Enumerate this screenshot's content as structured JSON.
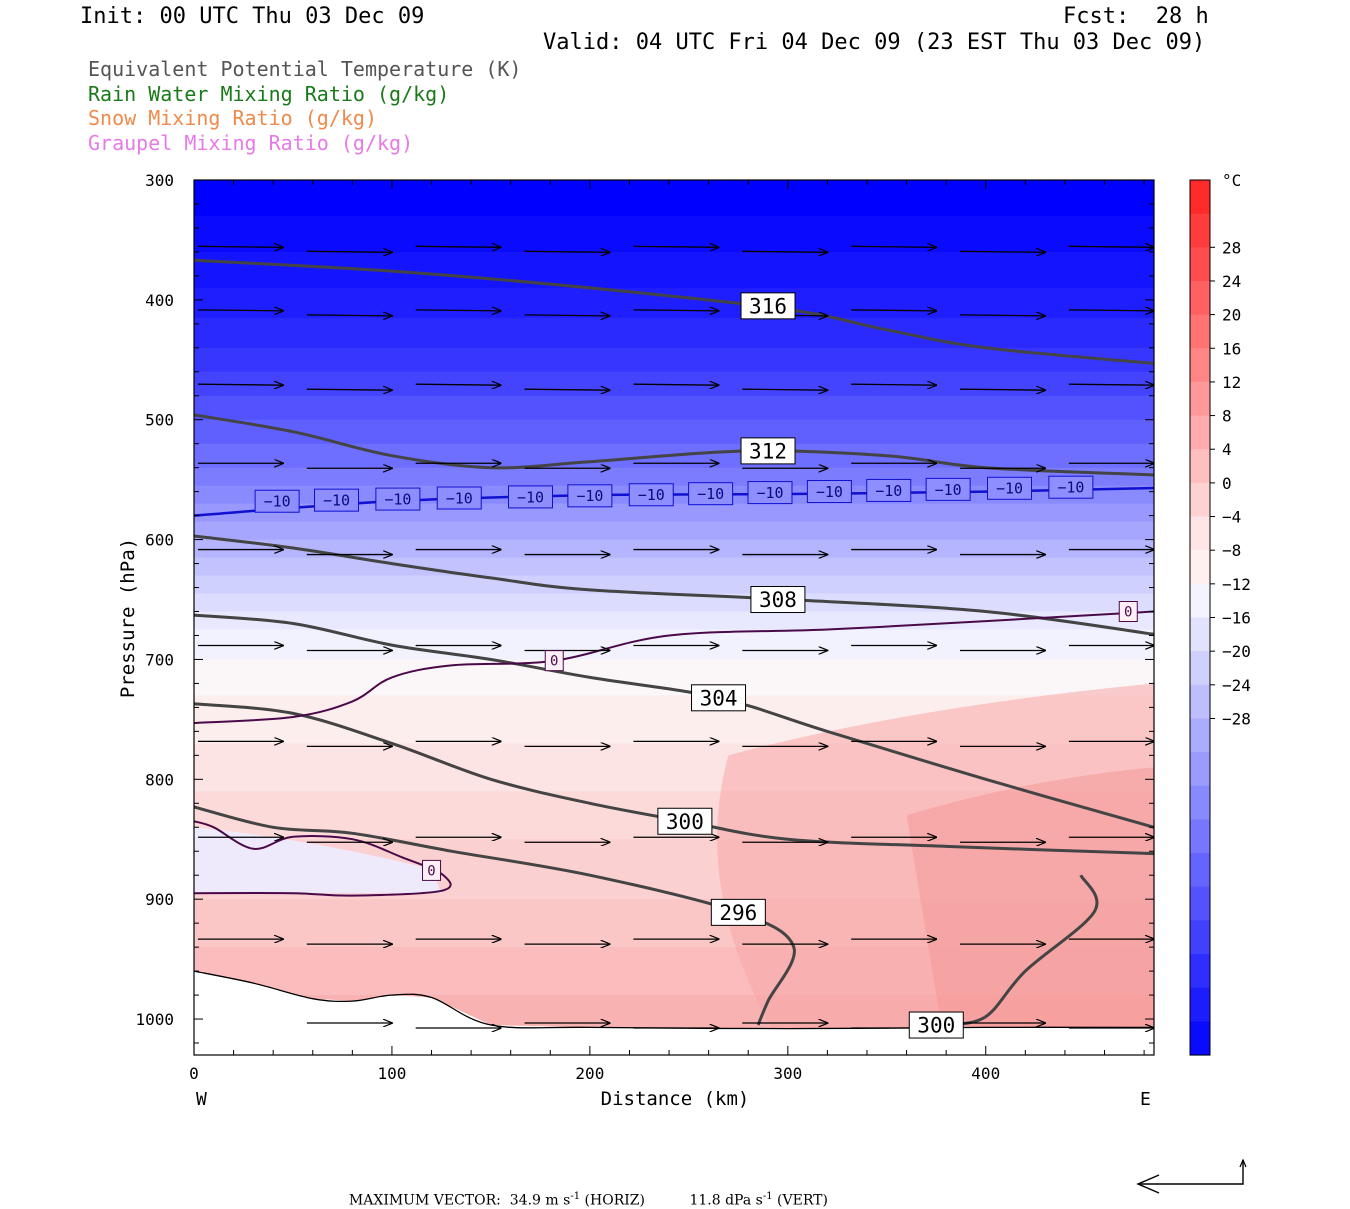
{
  "header": {
    "init": "Init: 00 UTC Thu 03 Dec 09",
    "fcst": "Fcst:  28 h",
    "valid": "Valid: 04 UTC Fri 04 Dec 09 (23 EST Thu 03 Dec 09)"
  },
  "legend": [
    {
      "text": "Equivalent Potential Temperature (K)",
      "color": "#555555"
    },
    {
      "text": "Rain Water Mixing Ratio (g/kg)",
      "color": "#1a7a1a"
    },
    {
      "text": "Snow Mixing Ratio (g/kg)",
      "color": "#f08a4b"
    },
    {
      "text": "Graupel Mixing Ratio (g/kg)",
      "color": "#e87ae8"
    }
  ],
  "footer": {
    "max_vector_label": "MAXIMUM VECTOR:",
    "horiz": "34.9 m s",
    "horiz_tail": " (HORIZ)",
    "vert": "11.8 dPa s",
    "vert_tail": " (VERT)",
    "exp": "-1"
  },
  "chart_data": {
    "type": "heatmap",
    "title": "",
    "xlabel": "Distance (km)",
    "ylabel": "Pressure (hPa)",
    "xlim": [
      0,
      485
    ],
    "ylim": [
      1030,
      300
    ],
    "x_ticks": [
      0,
      100,
      200,
      300,
      400
    ],
    "y_ticks": [
      300,
      400,
      500,
      600,
      700,
      800,
      900,
      1000
    ],
    "x_end_labels": {
      "left": "W",
      "right": "E"
    },
    "colorbar": {
      "unit": "°C",
      "ticks": [
        "28",
        "24",
        "20",
        "16",
        "12",
        "8",
        "4",
        "0",
        "−4",
        "−8",
        "−12",
        "−16",
        "−20",
        "−24",
        "−28"
      ],
      "colors": [
        "#ff2a2a",
        "#ff3b3b",
        "#ff4d4d",
        "#ff6060",
        "#ff7373",
        "#ff8686",
        "#ff9999",
        "#ffacac",
        "#ffbfbf",
        "#ffd2d2",
        "#ffe5e5",
        "#fff0f0",
        "#f4f4ff",
        "#e2e2ff",
        "#d0d0ff",
        "#bebeff",
        "#acacff",
        "#9a9aff",
        "#8888ff",
        "#7676ff",
        "#6464ff",
        "#5252ff",
        "#4040ff",
        "#2e2eff",
        "#1c1cff",
        "#0a0aff"
      ]
    },
    "theta_e_contours": [
      {
        "label": "316",
        "label_at": [
          290,
          405
        ],
        "points": [
          [
            0,
            367
          ],
          [
            100,
            376
          ],
          [
            200,
            390
          ],
          [
            300,
            408
          ],
          [
            350,
            425
          ],
          [
            400,
            440
          ],
          [
            485,
            453
          ]
        ]
      },
      {
        "label": "312",
        "label_at": [
          290,
          526
        ],
        "points": [
          [
            0,
            496
          ],
          [
            50,
            510
          ],
          [
            100,
            530
          ],
          [
            150,
            540
          ],
          [
            200,
            535
          ],
          [
            280,
            526
          ],
          [
            350,
            530
          ],
          [
            400,
            540
          ],
          [
            485,
            546
          ]
        ]
      },
      {
        "label": "308",
        "label_at": [
          295,
          650
        ],
        "points": [
          [
            0,
            597
          ],
          [
            50,
            607
          ],
          [
            100,
            620
          ],
          [
            150,
            632
          ],
          [
            200,
            642
          ],
          [
            300,
            650
          ],
          [
            400,
            660
          ],
          [
            485,
            679
          ]
        ]
      },
      {
        "label": "304",
        "label_at": [
          265,
          732
        ],
        "points": [
          [
            0,
            663
          ],
          [
            50,
            670
          ],
          [
            100,
            688
          ],
          [
            150,
            700
          ],
          [
            200,
            715
          ],
          [
            265,
            732
          ],
          [
            320,
            760
          ],
          [
            400,
            800
          ],
          [
            485,
            840
          ]
        ]
      },
      {
        "label": "300",
        "label_at": [
          248,
          835
        ],
        "points": [
          [
            0,
            737
          ],
          [
            50,
            745
          ],
          [
            100,
            770
          ],
          [
            150,
            800
          ],
          [
            200,
            820
          ],
          [
            248,
            835
          ],
          [
            300,
            850
          ],
          [
            380,
            856
          ],
          [
            485,
            862
          ]
        ]
      },
      {
        "label": "296",
        "label_at": [
          275,
          911
        ],
        "points": [
          [
            0,
            823
          ],
          [
            40,
            840
          ],
          [
            80,
            845
          ],
          [
            130,
            860
          ],
          [
            200,
            880
          ],
          [
            275,
            911
          ],
          [
            303,
            940
          ],
          [
            290,
            985
          ],
          [
            285,
            1005
          ]
        ]
      },
      {
        "label": "300",
        "label_at": [
          375,
          1005
        ],
        "points": [
          [
            380,
            1005
          ],
          [
            400,
            998
          ],
          [
            420,
            960
          ],
          [
            455,
            910
          ],
          [
            448,
            880
          ]
        ]
      }
    ],
    "isotherms": [
      {
        "label": "−10",
        "points": [
          [
            0,
            580
          ],
          [
            100,
            568
          ],
          [
            200,
            563
          ],
          [
            300,
            562
          ],
          [
            400,
            560
          ],
          [
            485,
            557
          ]
        ],
        "label_xs": [
          42,
          72,
          103,
          134,
          170,
          200,
          231,
          261,
          291,
          321,
          351,
          381,
          412,
          443
        ]
      },
      {
        "label": "0",
        "label_at": [
          182,
          701
        ],
        "points": [
          [
            0,
            753
          ],
          [
            50,
            748
          ],
          [
            80,
            735
          ],
          [
            100,
            715
          ],
          [
            130,
            705
          ],
          [
            182,
            701
          ],
          [
            240,
            680
          ],
          [
            320,
            675
          ],
          [
            400,
            668
          ],
          [
            485,
            660
          ]
        ]
      },
      {
        "label": "0",
        "label_at": [
          120,
          876
        ],
        "points": [
          [
            0,
            895
          ],
          [
            50,
            895
          ],
          [
            80,
            897
          ],
          [
            125,
            893
          ],
          [
            126,
            880
          ],
          [
            105,
            865
          ],
          [
            80,
            850
          ],
          [
            50,
            848
          ],
          [
            30,
            858
          ],
          [
            10,
            840
          ],
          [
            0,
            835
          ]
        ]
      },
      {
        "label": "0",
        "label_at": [
          472,
          660
        ],
        "points": []
      }
    ],
    "wind_vectors_rows": [
      {
        "p": 357,
        "xs": [
          0,
          55,
          110,
          165,
          220,
          275,
          330,
          385,
          440
        ]
      },
      {
        "p": 410,
        "xs": [
          0,
          55,
          110,
          165,
          220,
          275,
          330,
          385,
          440
        ]
      },
      {
        "p": 472,
        "xs": [
          0,
          55,
          110,
          165,
          220,
          275,
          330,
          385,
          440
        ]
      },
      {
        "p": 538,
        "xs": [
          0,
          55,
          110,
          165,
          220,
          275,
          330,
          385,
          440
        ]
      },
      {
        "p": 610,
        "xs": [
          0,
          55,
          110,
          165,
          220,
          275,
          330,
          385,
          440
        ]
      },
      {
        "p": 690,
        "xs": [
          0,
          55,
          110,
          165,
          220,
          275,
          330,
          385,
          440
        ]
      },
      {
        "p": 770,
        "xs": [
          0,
          55,
          110,
          165,
          220,
          275,
          330,
          385,
          440
        ]
      },
      {
        "p": 850,
        "xs": [
          0,
          55,
          110,
          165,
          220,
          275,
          330,
          385,
          440
        ]
      },
      {
        "p": 935,
        "xs": [
          0,
          55,
          110,
          165,
          220,
          275,
          330,
          385,
          440
        ]
      },
      {
        "p": 1005,
        "xs": [
          55,
          110,
          165,
          220,
          275,
          330,
          385,
          440
        ]
      }
    ],
    "terrain_line": [
      [
        0,
        960
      ],
      [
        30,
        970
      ],
      [
        60,
        983
      ],
      [
        80,
        985
      ],
      [
        100,
        980
      ],
      [
        120,
        982
      ],
      [
        150,
        1005
      ],
      [
        200,
        1007
      ],
      [
        300,
        1008
      ],
      [
        400,
        1007
      ],
      [
        485,
        1007
      ]
    ]
  }
}
